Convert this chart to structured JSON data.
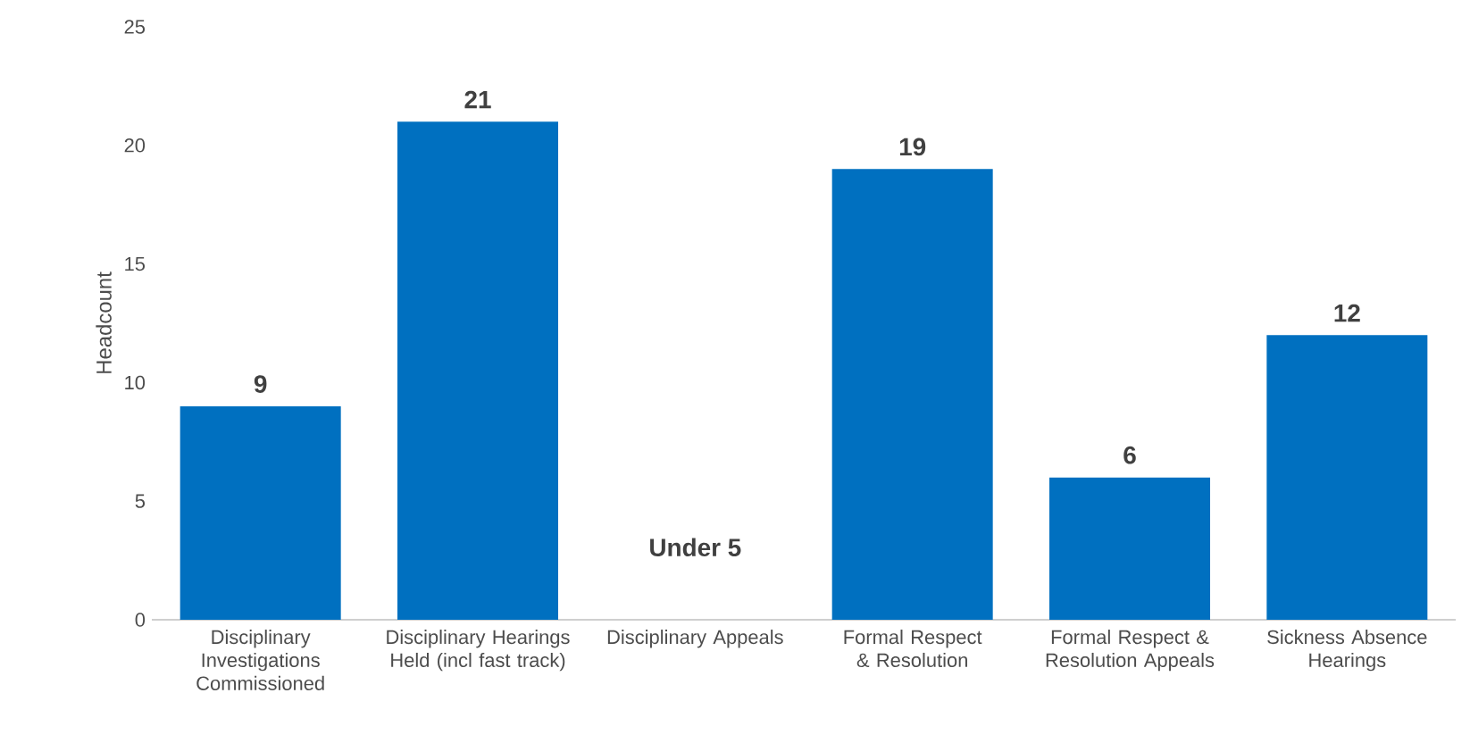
{
  "chart_data": {
    "type": "bar",
    "ylabel": "Headcount",
    "categories": [
      "Disciplinary Investigations Commissioned",
      "Disciplinary Hearings Held (incl fast track)",
      "Disciplinary Appeals",
      "Formal Respect & Resolution",
      "Formal Respect & Resolution Appeals",
      "Sickness Absence Hearings"
    ],
    "values": [
      9,
      21,
      null,
      19,
      6,
      12
    ],
    "value_labels": [
      "9",
      "21",
      "Under 5",
      "19",
      "6",
      "12"
    ],
    "color": "#0070c0",
    "ylim": [
      0,
      25
    ],
    "yticks": [
      0,
      5,
      10,
      15,
      20,
      25
    ]
  }
}
